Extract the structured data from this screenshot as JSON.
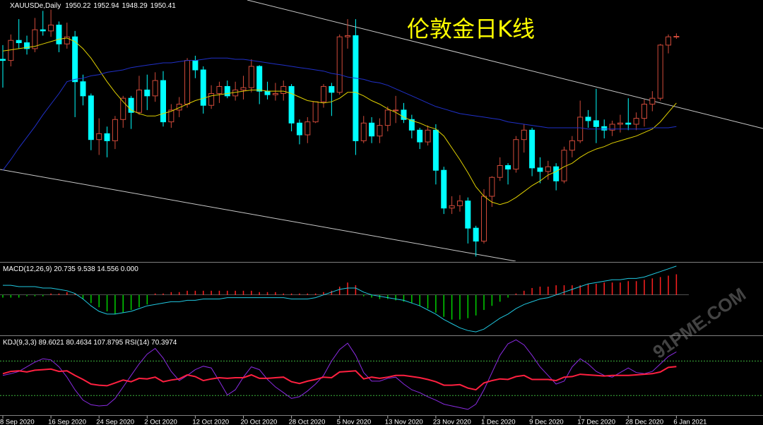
{
  "chart_data": [
    {
      "type": "candlestick",
      "symbol": "XAUUSDe,Daily",
      "title": "伦敦金日K线",
      "categories": [
        "8 Sep 2020",
        null,
        null,
        null,
        null,
        null,
        "16 Sep 2020",
        null,
        null,
        null,
        null,
        null,
        "24 Sep 2020",
        null,
        null,
        null,
        null,
        null,
        "2 Oct 2020",
        null,
        null,
        null,
        null,
        null,
        "12 Oct 2020",
        null,
        null,
        null,
        null,
        null,
        "20 Oct 2020",
        null,
        null,
        null,
        null,
        null,
        "28 Oct 2020",
        null,
        null,
        null,
        null,
        null,
        "5 Nov 2020",
        null,
        null,
        null,
        null,
        null,
        "13 Nov 2020",
        null,
        null,
        null,
        null,
        null,
        "23 Nov 2020",
        null,
        null,
        null,
        null,
        null,
        "1 Dec 2020",
        null,
        null,
        null,
        null,
        null,
        "9 Dec 2020",
        null,
        null,
        null,
        null,
        null,
        "17 Dec 2020",
        null,
        null,
        null,
        null,
        null,
        "28 Dec 2020",
        null,
        null,
        null,
        null,
        null,
        "6 Jan 2021"
      ],
      "open": [
        1931,
        1930,
        1947,
        1945,
        1940,
        1956,
        1955,
        1960,
        1944,
        1950,
        1912,
        1900,
        1863,
        1868,
        1862,
        1880,
        1898,
        1886,
        1905,
        1900,
        1913,
        1878,
        1888,
        1893,
        1930,
        1922,
        1892,
        1902,
        1908,
        1900,
        1905,
        1907,
        1925,
        1904,
        1901,
        1902,
        1908,
        1877,
        1867,
        1878,
        1895,
        1908,
        1903,
        1950,
        1951,
        1862,
        1877,
        1866,
        1875,
        1888,
        1888,
        1880,
        1871,
        1861,
        1871,
        1837,
        1805,
        1807,
        1811,
        1788,
        1777,
        1815,
        1831,
        1841,
        1838,
        1863,
        1871,
        1839,
        1836,
        1840,
        1828,
        1854,
        1862,
        1882,
        1879,
        1874,
        1871,
        1876,
        1877,
        1876,
        1881,
        1893,
        1898,
        1943,
        1950.22
      ],
      "high": [
        1943,
        1952,
        1965,
        1951,
        1966,
        1972,
        1973,
        1963,
        1962,
        1955,
        1918,
        1902,
        1881,
        1874,
        1883,
        1900,
        1900,
        1917,
        1918,
        1920,
        1921,
        1893,
        1899,
        1932,
        1934,
        1925,
        1909,
        1912,
        1913,
        1912,
        1917,
        1931,
        1926,
        1912,
        1911,
        1913,
        1910,
        1880,
        1882,
        1895,
        1910,
        1911,
        1952,
        1965,
        1965,
        1883,
        1882,
        1881,
        1891,
        1900,
        1894,
        1884,
        1873,
        1875,
        1876,
        1840,
        1815,
        1816,
        1814,
        1790,
        1821,
        1832,
        1848,
        1843,
        1866,
        1876,
        1873,
        1848,
        1845,
        1843,
        1857,
        1866,
        1896,
        1888,
        1906,
        1880,
        1879,
        1884,
        1898,
        1886,
        1897,
        1904,
        1944,
        1952,
        1952.94
      ],
      "low": [
        1907,
        1925,
        1940,
        1935,
        1937,
        1951,
        1950,
        1937,
        1940,
        1882,
        1892,
        1854,
        1850,
        1848,
        1855,
        1873,
        1872,
        1884,
        1888,
        1895,
        1874,
        1873,
        1882,
        1890,
        1915,
        1885,
        1889,
        1894,
        1898,
        1896,
        1897,
        1903,
        1893,
        1897,
        1896,
        1896,
        1870,
        1859,
        1860,
        1877,
        1890,
        1883,
        1901,
        1940,
        1850,
        1860,
        1860,
        1860,
        1870,
        1877,
        1877,
        1864,
        1855,
        1858,
        1825,
        1800,
        1800,
        1802,
        1775,
        1764,
        1775,
        1806,
        1828,
        1825,
        1835,
        1852,
        1832,
        1826,
        1829,
        1820,
        1826,
        1848,
        1860,
        1873,
        1860,
        1864,
        1866,
        1869,
        1871,
        1871,
        1874,
        1887,
        1896,
        1936,
        1948.29
      ],
      "close": [
        1930,
        1947,
        1945,
        1940,
        1956,
        1955,
        1960,
        1944,
        1950,
        1912,
        1900,
        1863,
        1868,
        1862,
        1880,
        1898,
        1886,
        1905,
        1900,
        1913,
        1878,
        1888,
        1893,
        1930,
        1922,
        1892,
        1902,
        1908,
        1900,
        1905,
        1907,
        1925,
        1904,
        1901,
        1902,
        1908,
        1877,
        1867,
        1878,
        1895,
        1908,
        1903,
        1950,
        1951,
        1862,
        1877,
        1866,
        1875,
        1888,
        1888,
        1880,
        1871,
        1861,
        1871,
        1837,
        1805,
        1807,
        1811,
        1788,
        1777,
        1815,
        1831,
        1841,
        1838,
        1863,
        1871,
        1839,
        1836,
        1840,
        1828,
        1854,
        1862,
        1882,
        1879,
        1874,
        1871,
        1876,
        1877,
        1876,
        1881,
        1893,
        1898,
        1943,
        1950,
        1950.41
      ],
      "up_color": "#d04a3a",
      "down_color": "#00ffff",
      "lines": [
        {
          "color": "#e0d000",
          "values": [
            1938,
            1939,
            1940,
            1941,
            1942,
            1944,
            1946,
            1948,
            1949,
            1946,
            1940,
            1932,
            1922,
            1912,
            1903,
            1895,
            1888,
            1885,
            1883,
            1883,
            1885,
            1887,
            1890,
            1893,
            1896,
            1898,
            1900,
            1901,
            1902,
            1903,
            1904,
            1905,
            1905,
            1904,
            1904,
            1904,
            1902,
            1899,
            1896,
            1895,
            1894,
            1895,
            1898,
            1903,
            1903,
            1900,
            1896,
            1893,
            1889,
            1886,
            1882,
            1879,
            1877,
            1874,
            1872,
            1866,
            1856,
            1846,
            1835,
            1823,
            1815,
            1810,
            1808,
            1810,
            1814,
            1819,
            1824,
            1828,
            1833,
            1836,
            1840,
            1843,
            1848,
            1852,
            1855,
            1857,
            1860,
            1862,
            1864,
            1866,
            1869,
            1872,
            1878,
            1886,
            1894
          ]
        },
        {
          "color": "#2030c8",
          "values": [
            1837,
            1846,
            1856,
            1865,
            1874,
            1884,
            1893,
            1902,
            1912,
            1914,
            1915,
            1917,
            1918,
            1920,
            1921,
            1922,
            1924,
            1925,
            1926,
            1927,
            1928,
            1928,
            1929,
            1930,
            1930,
            1931,
            1932,
            1932,
            1932,
            1931,
            1931,
            1930,
            1929,
            1928,
            1927,
            1926,
            1925,
            1924,
            1923,
            1922,
            1921,
            1919,
            1918,
            1916,
            1915,
            1914,
            1912,
            1911,
            1909,
            1906,
            1903,
            1900,
            1897,
            1894,
            1891,
            1889,
            1887,
            1885,
            1884,
            1883,
            1882,
            1881,
            1880,
            1878,
            1877,
            1876,
            1875,
            1874,
            1873,
            1873,
            1873,
            1873,
            1873,
            1872,
            1872,
            1872,
            1872,
            1872,
            1872,
            1872,
            1872,
            1873,
            1873,
            1873,
            1874
          ]
        }
      ],
      "ylim": [
        1760,
        1980
      ]
    },
    {
      "type": "bar",
      "label": "MACD(12,26,9) 20.735 9.538 14.556 0.000",
      "values": [
        -2,
        -2,
        -2,
        -1,
        -1,
        -1,
        1,
        1,
        2,
        1,
        -3,
        -6,
        -9,
        -12,
        -14,
        -13,
        -11,
        -9,
        -7,
        1,
        1,
        2,
        2,
        3,
        3,
        3,
        3,
        3,
        3,
        3,
        3,
        3,
        2,
        2,
        2,
        1,
        1,
        1,
        1,
        1,
        2,
        3,
        6,
        9,
        7,
        -1,
        -2,
        -3,
        -3,
        -4,
        -5,
        -6,
        -8,
        -10,
        -13,
        -16,
        -18,
        -18,
        -17,
        -15,
        -11,
        -8,
        -5,
        -2,
        1,
        3,
        5,
        6,
        6,
        7,
        7,
        7,
        7,
        8,
        8,
        9,
        9,
        9,
        10,
        10,
        11,
        12,
        13,
        14,
        15
      ],
      "up_color": "#ff2020",
      "down_color": "#00d000",
      "lines": [
        {
          "color": "#20c8e0",
          "values": [
            7,
            7,
            6,
            6,
            6,
            5,
            5,
            4,
            3,
            1,
            -3,
            -8,
            -12,
            -14,
            -14,
            -13,
            -12,
            -10,
            -8,
            -7,
            -6,
            -5,
            -5,
            -4,
            -4,
            -3,
            -3,
            -3,
            -2,
            -2,
            -2,
            -2,
            -2,
            -2,
            -2,
            -2,
            -3,
            -3,
            -3,
            -2,
            0,
            2,
            4,
            5,
            5,
            2,
            0,
            -1,
            -2,
            -3,
            -4,
            -6,
            -8,
            -11,
            -14,
            -18,
            -21,
            -24,
            -26,
            -27,
            -25,
            -21,
            -17,
            -14,
            -10,
            -7,
            -5,
            -3,
            -2,
            0,
            2,
            4,
            6,
            8,
            9,
            10,
            11,
            11,
            12,
            12,
            13,
            15,
            17,
            19,
            21
          ]
        }
      ],
      "ylim": [
        -29,
        23
      ]
    },
    {
      "type": "line",
      "label": "KDJ(9,3,3) 89.6021 80.4634 107.8795 RSI(14) 70.3974",
      "watermark": "91PME.COM",
      "series": [
        {
          "color": "#8a2be2",
          "values": [
            55,
            58,
            62,
            70,
            78,
            84,
            82,
            70,
            52,
            30,
            12,
            4,
            2,
            3,
            15,
            35,
            55,
            75,
            92,
            102,
            85,
            62,
            46,
            55,
            65,
            71,
            68,
            45,
            21,
            30,
            52,
            70,
            65,
            48,
            35,
            25,
            15,
            18,
            28,
            40,
            55,
            80,
            100,
            111,
            90,
            60,
            45,
            45,
            50,
            52,
            40,
            30,
            25,
            18,
            12,
            5,
            2,
            -1,
            -4,
            5,
            30,
            60,
            90,
            110,
            117,
            108,
            90,
            70,
            55,
            40,
            45,
            70,
            84,
            75,
            62,
            55,
            52,
            60,
            68,
            60,
            58,
            62,
            75,
            88,
            96
          ]
        },
        {
          "color": "#ff2040",
          "values": [
            58,
            62,
            63,
            61,
            64,
            65,
            66,
            62,
            63,
            55,
            48,
            40,
            38,
            37,
            42,
            47,
            44,
            50,
            49,
            52,
            44,
            47,
            49,
            56,
            53,
            46,
            49,
            51,
            50,
            51,
            51,
            56,
            50,
            50,
            51,
            52,
            44,
            41,
            45,
            48,
            52,
            51,
            61,
            62,
            63,
            49,
            52,
            50,
            52,
            55,
            55,
            53,
            51,
            48,
            44,
            38,
            38,
            39,
            33,
            30,
            42,
            46,
            49,
            48,
            53,
            55,
            48,
            48,
            48,
            46,
            52,
            53,
            57,
            56,
            55,
            54,
            55,
            55,
            55,
            56,
            57,
            58,
            61,
            69,
            70.4
          ]
        }
      ],
      "levels": [
        20,
        80
      ],
      "level_color": "#3cb43c",
      "ylim": [
        -14,
        121
      ]
    }
  ]
}
